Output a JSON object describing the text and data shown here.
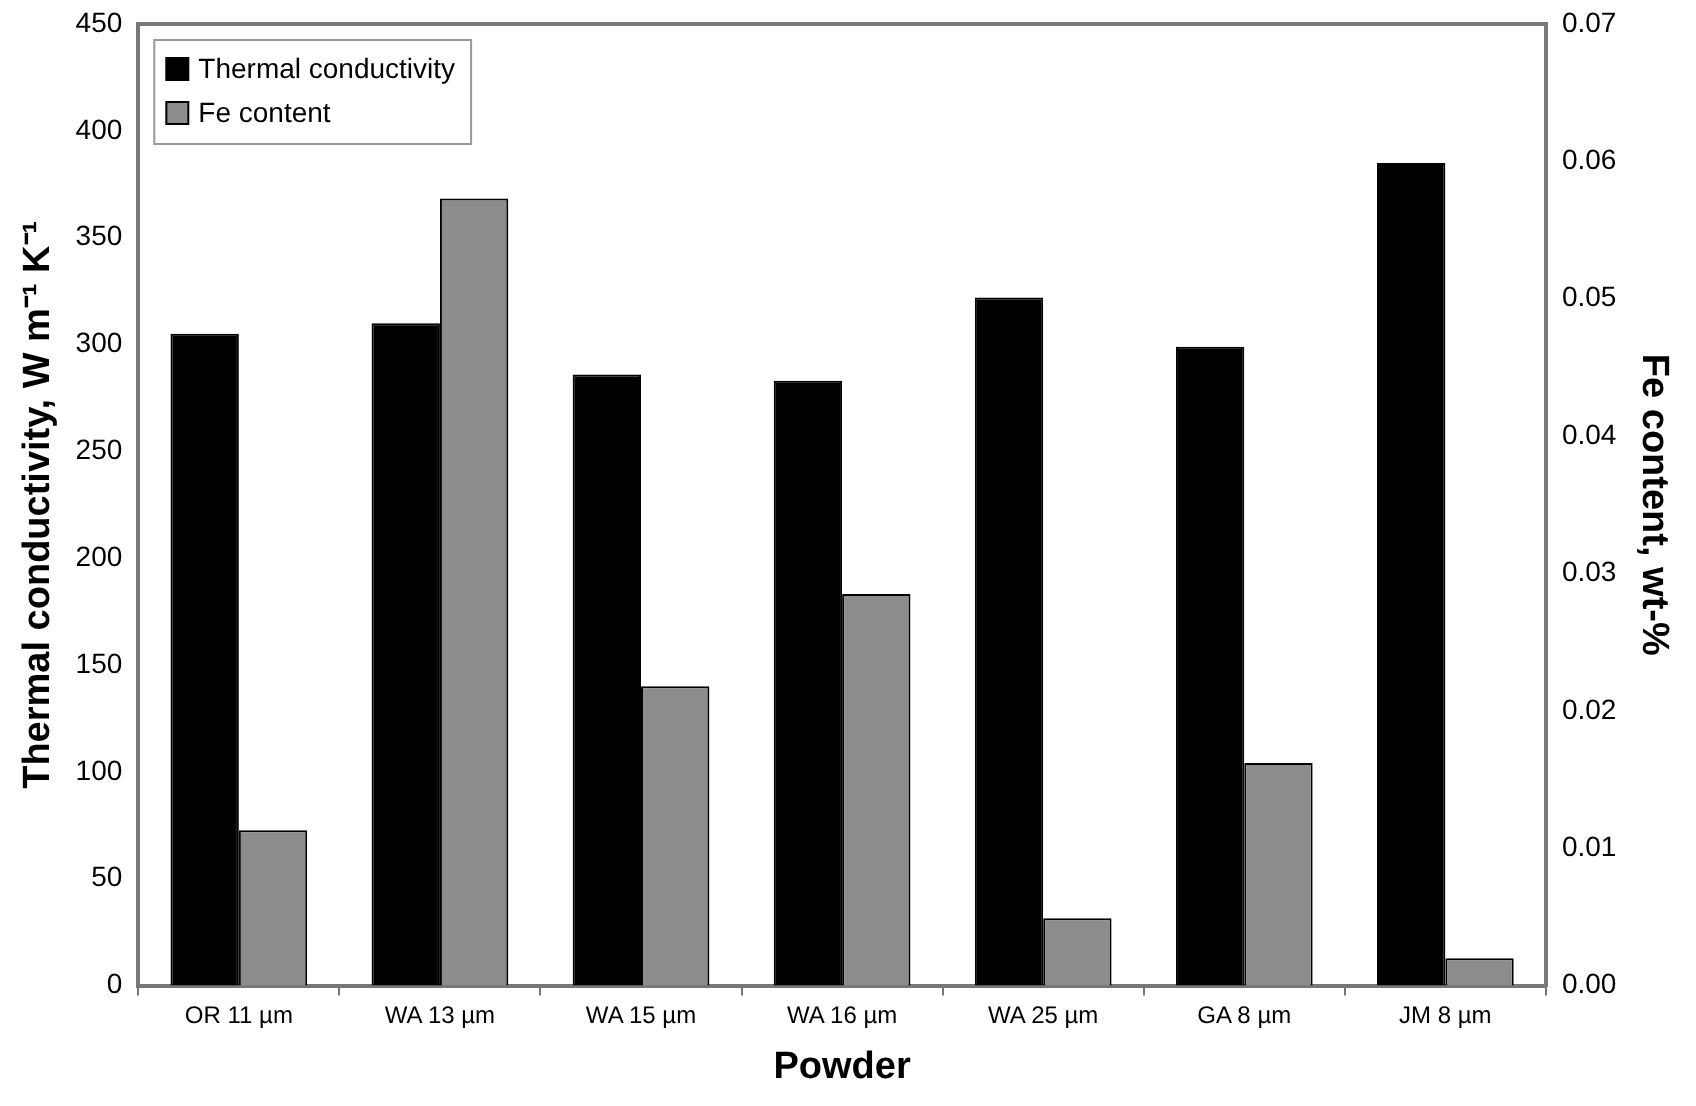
{
  "chart_data": {
    "type": "bar",
    "xlabel": "Powder",
    "ylabel": "Thermal conductivity, W m⁻¹ K⁻¹",
    "y2label": "Fe content, wt-%",
    "categories": [
      "OR 11 µm",
      "WA 13 µm",
      "WA 15 µm",
      "WA 16 µm",
      "WA 25 µm",
      "GA 8 µm",
      "JM 8 µm"
    ],
    "series": [
      {
        "name": "Thermal conductivity",
        "color": "#000000",
        "values": [
          305,
          310,
          286,
          283,
          322,
          299,
          385
        ]
      },
      {
        "name": "Fe content",
        "color": "#8c8c8c",
        "axis": "y2",
        "values": [
          0.0113,
          0.0573,
          0.0218,
          0.0285,
          0.0049,
          0.0162,
          0.002
        ]
      }
    ],
    "ylim": [
      0,
      450
    ],
    "yticks": [
      0,
      50,
      100,
      150,
      200,
      250,
      300,
      350,
      400,
      450
    ],
    "y2lim": [
      0,
      0.07
    ],
    "y2ticks": [
      {
        "value": 0,
        "label": "0.00"
      },
      {
        "value": 0.01,
        "label": "0.01"
      },
      {
        "value": 0.02,
        "label": "0.02"
      },
      {
        "value": 0.03,
        "label": "0.03"
      },
      {
        "value": 0.04,
        "label": "0.04"
      },
      {
        "value": 0.05,
        "label": "0.05"
      },
      {
        "value": 0.06,
        "label": "0.06"
      },
      {
        "value": 0.07,
        "label": "0.07"
      }
    ],
    "grid": false,
    "legend": "top left"
  }
}
